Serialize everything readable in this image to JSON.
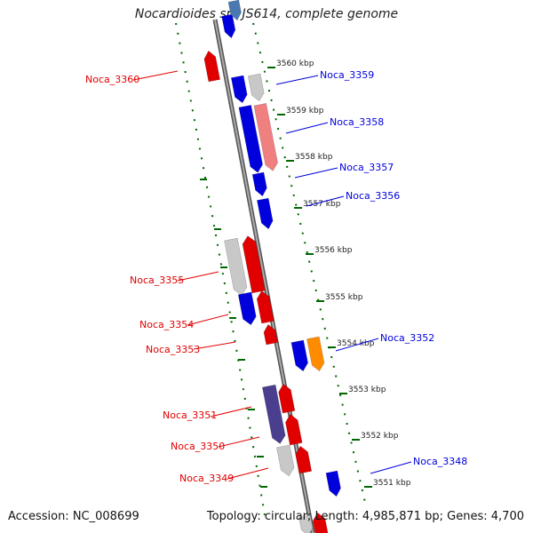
{
  "title": "Nocardioides sp. JS614, complete genome",
  "footer": {
    "accession": "Accession: NC_008699",
    "topology": "Topology: circular; Length: 4,985,871 bp; Genes: 4,700"
  },
  "colors": {
    "forward": "#e00000",
    "reverse": "#0000dd",
    "unknown": "#c8c8c8",
    "salmon": "#f08080",
    "purple": "#4a3f8f",
    "orange": "#ff8c00",
    "steel": "#4a78b0",
    "ruler": "#006600",
    "backbone": "#888888"
  },
  "ticks": [
    {
      "label": "3560 kbp"
    },
    {
      "label": "3559 kbp"
    },
    {
      "label": "3558 kbp"
    },
    {
      "label": "3557 kbp"
    },
    {
      "label": "3556 kbp"
    },
    {
      "label": "3555 kbp"
    },
    {
      "label": "3554 kbp"
    },
    {
      "label": "3553 kbp"
    },
    {
      "label": "3552 kbp"
    },
    {
      "label": "3551 kbp"
    }
  ],
  "gene_labels": [
    {
      "text": "Noca_3360",
      "side": "left"
    },
    {
      "text": "Noca_3359",
      "side": "right"
    },
    {
      "text": "Noca_3358",
      "side": "right"
    },
    {
      "text": "Noca_3357",
      "side": "right"
    },
    {
      "text": "Noca_3356",
      "side": "right"
    },
    {
      "text": "Noca_3355",
      "side": "left"
    },
    {
      "text": "Noca_3354",
      "side": "left"
    },
    {
      "text": "Noca_3353",
      "side": "left"
    },
    {
      "text": "Noca_3352",
      "side": "right"
    },
    {
      "text": "Noca_3351",
      "side": "left"
    },
    {
      "text": "Noca_3350",
      "side": "left"
    },
    {
      "text": "Noca_3349",
      "side": "left"
    },
    {
      "text": "Noca_3348",
      "side": "right"
    }
  ]
}
